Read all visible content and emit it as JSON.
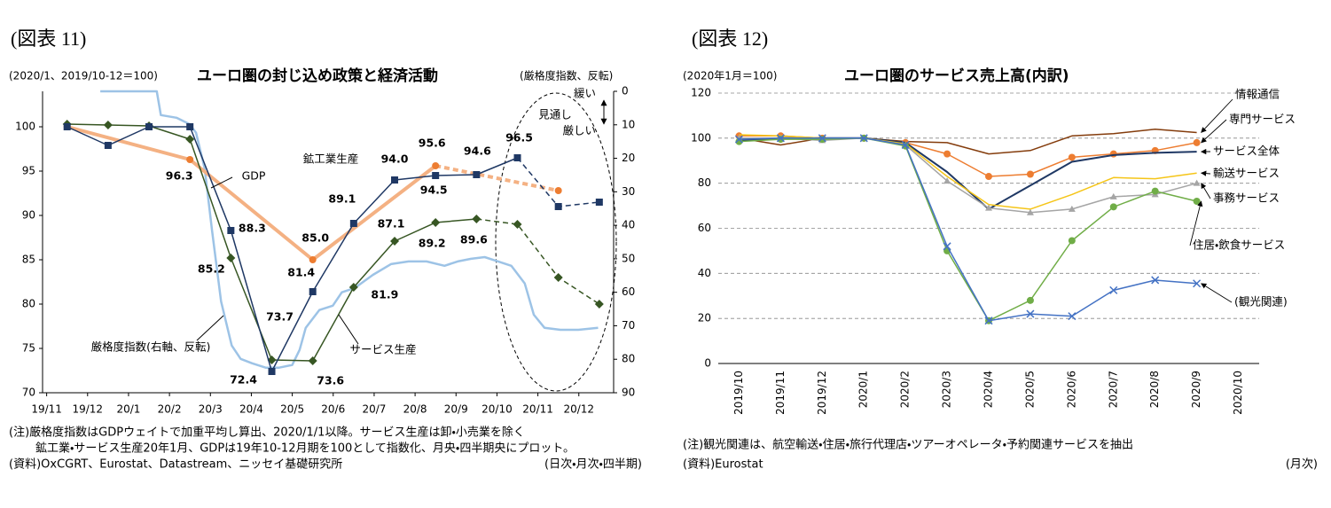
{
  "chart_data": [
    {
      "type": "line",
      "figure_label": "(図表 11)",
      "title": "ユーロ圏の封じ込め政策と経済活動",
      "subtitle": "(2020/1、2019/10-12＝100)",
      "y2_title": "(厳格度指数、反転)",
      "xlim": [
        -0.1,
        13.85
      ],
      "xticks": [
        {
          "value": 0,
          "label": "19/11"
        },
        {
          "value": 1,
          "label": "19/12"
        },
        {
          "value": 2,
          "label": "20/1"
        },
        {
          "value": 3,
          "label": "20/2"
        },
        {
          "value": 4,
          "label": "20/3"
        },
        {
          "value": 5,
          "label": "20/4"
        },
        {
          "value": 6,
          "label": "20/5"
        },
        {
          "value": 7,
          "label": "20/6"
        },
        {
          "value": 8,
          "label": "20/7"
        },
        {
          "value": 9,
          "label": "20/8"
        },
        {
          "value": 10,
          "label": "20/9"
        },
        {
          "value": 11,
          "label": "20/10"
        },
        {
          "value": 12,
          "label": "20/11"
        },
        {
          "value": 13,
          "label": "20/12"
        }
      ],
      "ylim": [
        70,
        104
      ],
      "yticks": [
        70,
        75,
        80,
        85,
        90,
        95,
        100
      ],
      "y2lim": [
        90,
        0
      ],
      "y2ticks": [
        0,
        10,
        20,
        30,
        40,
        50,
        60,
        70,
        80,
        90
      ],
      "series": [
        {
          "name": "GDP",
          "color": "#f4b183",
          "marker_color": "#ed7d31",
          "marker": "circle",
          "dashed_from": 3,
          "x": [
            0.5,
            3.5,
            6.5,
            9.5,
            12.5
          ],
          "values": [
            100,
            96.3,
            85.0,
            95.6,
            92.8
          ],
          "value_labels": [
            null,
            "96.3",
            "85.0",
            "95.6",
            null
          ]
        },
        {
          "name": "鉱工業生産",
          "color": "#1f3864",
          "marker_color": "#1f3864",
          "marker": "square",
          "dashed_from": 11,
          "x": [
            0.5,
            1.5,
            2.5,
            3.5,
            4.5,
            5.5,
            6.5,
            7.5,
            8.5,
            9.5,
            10.5,
            11.5,
            12.5,
            13.5
          ],
          "values": [
            100,
            97.9,
            100,
            100,
            88.3,
            72.4,
            81.4,
            89.1,
            94.0,
            94.5,
            94.6,
            96.5,
            91.0,
            91.5
          ],
          "value_labels": [
            null,
            null,
            null,
            null,
            "88.3",
            "72.4",
            "81.4",
            "89.1",
            "94.0",
            "94.5",
            "94.6",
            "96.5",
            null,
            null
          ]
        },
        {
          "name": "サービス生産",
          "color": "#375623",
          "marker_color": "#375623",
          "marker": "diamond",
          "dashed_from": 10,
          "x": [
            0.5,
            1.5,
            2.5,
            3.5,
            4.5,
            5.5,
            6.5,
            7.5,
            8.5,
            9.5,
            10.5,
            11.5,
            12.5,
            13.5
          ],
          "values": [
            100.3,
            100.2,
            100.1,
            98.6,
            85.2,
            73.7,
            73.6,
            81.9,
            87.1,
            89.2,
            89.6,
            89.0,
            83.0,
            80.0
          ],
          "value_labels": [
            null,
            null,
            null,
            null,
            "85.2",
            "73.7",
            "73.6",
            "81.9",
            "87.1",
            "89.2",
            "89.6",
            null,
            null,
            null
          ]
        },
        {
          "name": "厳格度指数(右軸、反転)",
          "color": "#9dc3e6",
          "marker": "none",
          "axis": "y2",
          "x": [
            1.31,
            2.69,
            2.79,
            3.17,
            3.49,
            3.65,
            3.86,
            4.04,
            4.26,
            4.52,
            4.74,
            5.02,
            5.35,
            5.68,
            6.0,
            6.18,
            6.33,
            6.66,
            6.99,
            7.21,
            7.53,
            7.97,
            8.41,
            8.84,
            9.28,
            9.72,
            10.04,
            10.37,
            10.7,
            11.03,
            11.35,
            11.68,
            11.9,
            12.16,
            12.55,
            12.99,
            13.47
          ],
          "values": [
            0,
            0,
            7.1,
            7.9,
            9.8,
            12.4,
            23,
            41.5,
            62.7,
            75.9,
            79.9,
            81.2,
            82.5,
            82.5,
            81.7,
            77.2,
            70.6,
            65.3,
            64,
            60,
            58.7,
            54.8,
            51.6,
            50.8,
            50.8,
            52.1,
            50.8,
            50,
            49.5,
            50.8,
            52.1,
            57.4,
            66.7,
            70.6,
            71.2,
            71.2,
            70.6
          ]
        }
      ],
      "annotations": [
        "見通し",
        "緩い",
        "厳しい"
      ],
      "notes": [
        "(注)厳格度指数はGDPウェイトで加重平均し算出、2020/1/1以降。サービス生産は卸・小売業を除く",
        "鉱工業・サービス生産20年1月、GDPは19年10-12月期を100として指数化、月央・四半期央にプロット。",
        "(資料)OxCGRT、Eurostat、Datastream、ニッセイ基礎研究所"
      ],
      "frequency": "(日次・月次・四半期)"
    },
    {
      "type": "line",
      "figure_label": "(図表 12)",
      "title": "ユーロ圏のサービス売上高(内訳)",
      "subtitle": "(2020年1月＝100)",
      "categories": [
        "2019/10",
        "2019/11",
        "2019/12",
        "2020/1",
        "2020/2",
        "2020/3",
        "2020/4",
        "2020/5",
        "2020/6",
        "2020/7",
        "2020/8",
        "2020/9",
        "2020/10"
      ],
      "ylim": [
        0,
        120
      ],
      "yticks": [
        0,
        20,
        40,
        60,
        80,
        100,
        120
      ],
      "grid": true,
      "grid_style": "dashed",
      "series": [
        {
          "name": "情報通信",
          "color": "#843c0c",
          "marker": "none",
          "values": [
            100,
            97,
            100,
            100,
            98.5,
            98,
            93,
            94.5,
            101,
            102,
            104,
            102.5,
            null
          ]
        },
        {
          "name": "専門サービス",
          "color": "#ed7d31",
          "marker": "circle",
          "values": [
            101,
            101,
            100,
            100,
            98,
            93,
            83,
            84,
            91.5,
            93,
            94.5,
            98,
            null
          ]
        },
        {
          "name": "サービス全体",
          "color": "#1f3864",
          "marker": "none",
          "values": [
            99,
            100,
            100,
            100,
            98,
            85,
            68.5,
            79,
            89.5,
            92.5,
            93.5,
            94,
            null
          ]
        },
        {
          "name": "輸送サービス",
          "color": "#f5c518",
          "marker": "none",
          "values": [
            101.5,
            101,
            100,
            100,
            97.5,
            83,
            70.5,
            68.5,
            75,
            82.5,
            82,
            84.5,
            null
          ]
        },
        {
          "name": "事務サービス",
          "color": "#a5a5a5",
          "marker": "triangle",
          "values": [
            100,
            100,
            99,
            100,
            97,
            81,
            69,
            67,
            68.5,
            74,
            75,
            80,
            null
          ]
        },
        {
          "name": "住居・飲食サービス",
          "color": "#70ad47",
          "marker": "circle",
          "values": [
            98.5,
            99.5,
            99.5,
            100,
            96.5,
            50,
            19,
            28,
            54.5,
            69.5,
            76.5,
            72,
            null
          ]
        },
        {
          "name": "(観光関連)",
          "color": "#4472c4",
          "marker": "x",
          "values": [
            99.5,
            100,
            100,
            100,
            97,
            52,
            19,
            22,
            21,
            32.5,
            37,
            35.5,
            null
          ]
        }
      ],
      "notes": [
        "(注)観光関連は、航空輸送・住居・旅行代理店・ツアーオペレータ・予約関連サービスを抽出",
        "(資料)Eurostat"
      ],
      "frequency": "(月次)"
    }
  ]
}
